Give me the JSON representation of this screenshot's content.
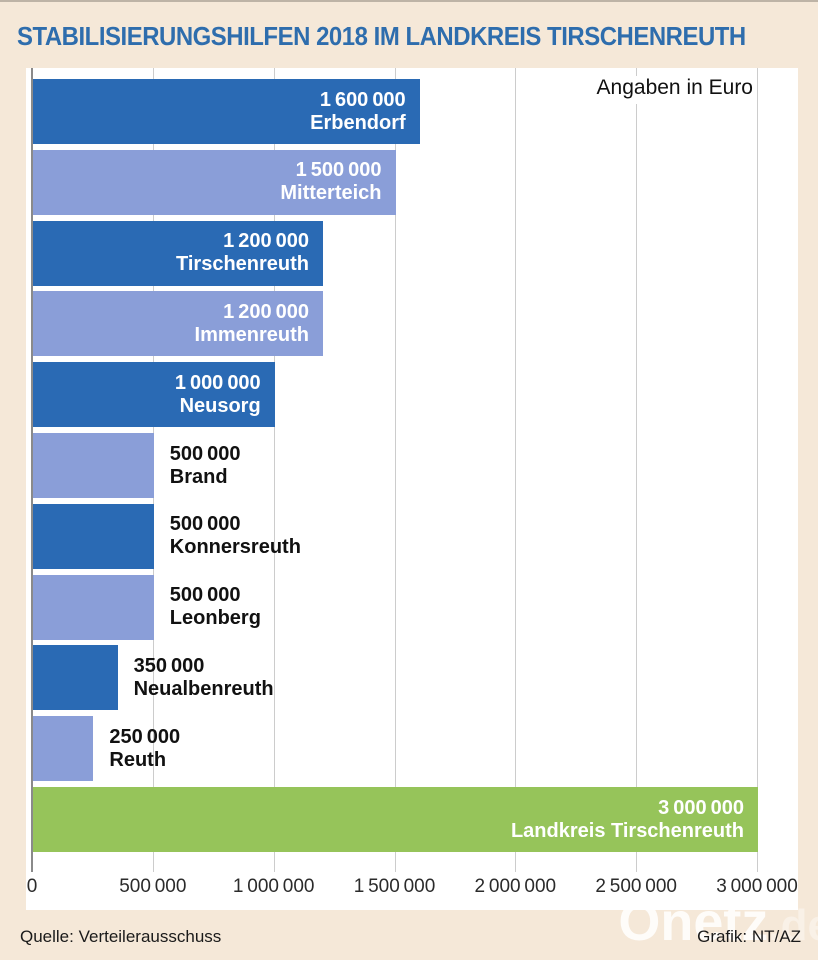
{
  "title": "STABILISIERUNGSHILFEN 2018 IM LANDKREIS TIRSCHENREUTH",
  "footer": {
    "source": "Quelle: Verteilerausschuss",
    "credit": "Grafik: NT/AZ",
    "watermark": "Onetz",
    "watermark_suffix": ".de"
  },
  "colors": {
    "dark_blue": "#2a6ab4",
    "light_blue": "#8a9ed8",
    "green": "#96c45a",
    "background": "#f5e8d8",
    "panel": "#ffffff",
    "gridline": "#cccccc",
    "axis": "#8a8a8a",
    "title_blue": "#2e6dad"
  },
  "chart_data": {
    "type": "bar",
    "orientation": "horizontal",
    "title": "STABILISIERUNGSHILFEN 2018 IM LANDKREIS TIRSCHENREUTH",
    "note": "Angaben in Euro",
    "xlabel": "",
    "ylabel": "",
    "xlim": [
      0,
      3000000
    ],
    "grid": true,
    "x_ticks": [
      0,
      500000,
      1000000,
      1500000,
      2000000,
      2500000,
      3000000
    ],
    "x_tick_labels": [
      "0",
      "500 000",
      "1 000 000",
      "1 500 000",
      "2 000 000",
      "2 500 000",
      "3 000 000"
    ],
    "categories": [
      "Erbendorf",
      "Mitterteich",
      "Tirschenreuth",
      "Immenreuth",
      "Neusorg",
      "Brand",
      "Konnersreuth",
      "Leonberg",
      "Neualbenreuth",
      "Reuth",
      "Landkreis Tirschenreuth"
    ],
    "values": [
      1600000,
      1500000,
      1200000,
      1200000,
      1000000,
      500000,
      500000,
      500000,
      350000,
      250000,
      3000000
    ],
    "bars": [
      {
        "name": "Erbendorf",
        "value": 1600000,
        "label": "1 600 000",
        "color": "dark_blue",
        "label_position": "inside"
      },
      {
        "name": "Mitterteich",
        "value": 1500000,
        "label": "1 500 000",
        "color": "light_blue",
        "label_position": "inside"
      },
      {
        "name": "Tirschenreuth",
        "value": 1200000,
        "label": "1 200 000",
        "color": "dark_blue",
        "label_position": "inside"
      },
      {
        "name": "Immenreuth",
        "value": 1200000,
        "label": "1 200 000",
        "color": "light_blue",
        "label_position": "inside"
      },
      {
        "name": "Neusorg",
        "value": 1000000,
        "label": "1 000 000",
        "color": "dark_blue",
        "label_position": "inside"
      },
      {
        "name": "Brand",
        "value": 500000,
        "label": "500 000",
        "color": "light_blue",
        "label_position": "outside"
      },
      {
        "name": "Konnersreuth",
        "value": 500000,
        "label": "500 000",
        "color": "dark_blue",
        "label_position": "outside"
      },
      {
        "name": "Leonberg",
        "value": 500000,
        "label": "500 000",
        "color": "light_blue",
        "label_position": "outside"
      },
      {
        "name": "Neualbenreuth",
        "value": 350000,
        "label": "350 000",
        "color": "dark_blue",
        "label_position": "outside"
      },
      {
        "name": "Reuth",
        "value": 250000,
        "label": "250 000",
        "color": "light_blue",
        "label_position": "outside"
      },
      {
        "name": "Landkreis Tirschenreuth",
        "value": 3000000,
        "label": "3 000 000",
        "color": "green",
        "label_position": "inside"
      }
    ]
  }
}
